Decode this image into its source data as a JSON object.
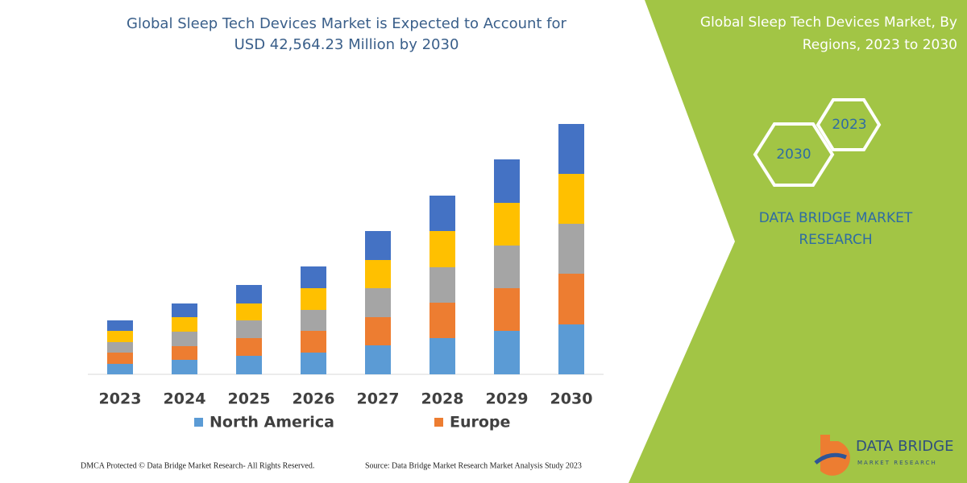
{
  "chart_data": {
    "type": "bar",
    "stacked": true,
    "title": [
      "Global Sleep Tech Devices Market is Expected to Account for",
      "USD 42,564.23 Million by 2030"
    ],
    "categories": [
      "2023",
      "2024",
      "2025",
      "2026",
      "2027",
      "2028",
      "2029",
      "2030"
    ],
    "series": [
      {
        "name": "North America",
        "color": "#5b9bd5",
        "values": [
          13,
          18,
          23,
          27,
          36,
          45,
          54,
          62
        ]
      },
      {
        "name": "Europe",
        "color": "#ed7d31",
        "values": [
          14,
          17,
          22,
          27,
          35,
          44,
          53,
          63
        ]
      },
      {
        "color": "#a5a5a5",
        "values": [
          13,
          18,
          22,
          26,
          36,
          44,
          53,
          62
        ]
      },
      {
        "color": "#ffc000",
        "values": [
          14,
          18,
          21,
          27,
          35,
          45,
          53,
          62
        ]
      },
      {
        "color": "#4472c4",
        "values": [
          13,
          17,
          23,
          27,
          36,
          44,
          54,
          62
        ]
      }
    ]
  },
  "side_panel": {
    "title": [
      "Global Sleep Tech Devices Market, By",
      "Regions, 2023 to 2030"
    ],
    "hexagons": [
      "2023",
      "2030"
    ],
    "brand": [
      "DATA BRIDGE MARKET",
      "RESEARCH"
    ]
  },
  "footer": {
    "copyright": "DMCA Protected © Data Bridge Market Research-  All Rights Reserved.",
    "source": "Source: Data Bridge Market Research  Market Analysis Study 2023"
  },
  "logo": {
    "name": "DATA BRIDGE",
    "tagline": "MARKET RESEARCH"
  }
}
